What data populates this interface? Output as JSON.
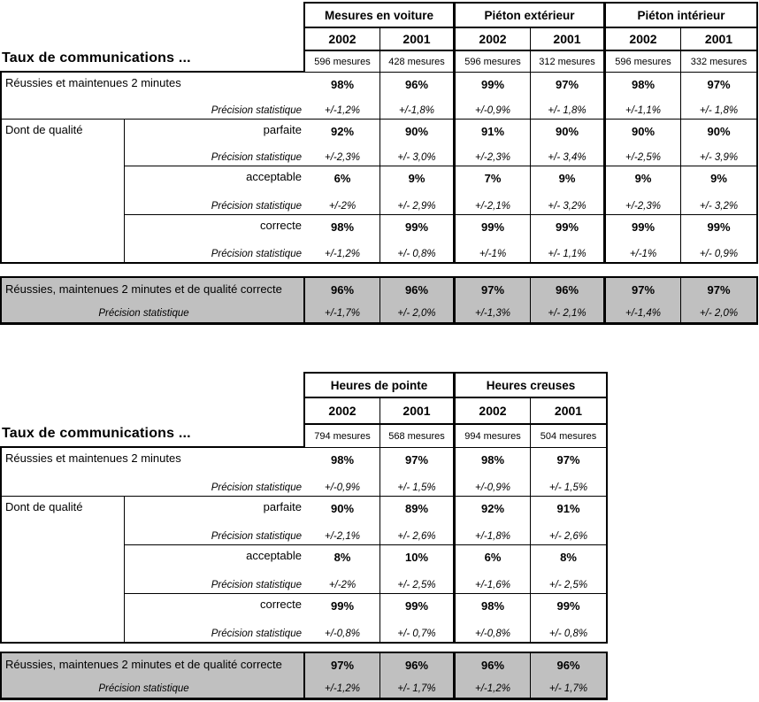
{
  "common": {
    "precision_label": "Précision statistique"
  },
  "colors": {
    "summary_bg": "#c0c0c0",
    "border": "#000000",
    "text": "#000000",
    "page_bg": "#ffffff"
  },
  "table1": {
    "title": "Taux de communications ...",
    "quality_label": "Dont de qualité",
    "groups": [
      {
        "label": "Mesures en voiture",
        "years": [
          "2002",
          "2001"
        ],
        "mesures": [
          "596 mesures",
          "428 mesures"
        ]
      },
      {
        "label": "Piéton extérieur",
        "years": [
          "2002",
          "2001"
        ],
        "mesures": [
          "596 mesures",
          "312 mesures"
        ]
      },
      {
        "label": "Piéton intérieur",
        "years": [
          "2002",
          "2001"
        ],
        "mesures": [
          "596 mesures",
          "332 mesures"
        ]
      }
    ],
    "rows": [
      {
        "label": "Réussies et maintenues 2 minutes",
        "values": [
          "98%",
          "96%",
          "99%",
          "97%",
          "98%",
          "97%"
        ],
        "precisions": [
          "+/-1,2%",
          "+/-1,8%",
          "+/-0,9%",
          "+/- 1,8%",
          "+/-1,1%",
          "+/- 1,8%"
        ]
      },
      {
        "label": "parfaite",
        "values": [
          "92%",
          "90%",
          "91%",
          "90%",
          "90%",
          "90%"
        ],
        "precisions": [
          "+/-2,3%",
          "+/- 3,0%",
          "+/-2,3%",
          "+/- 3,4%",
          "+/-2,5%",
          "+/- 3,9%"
        ]
      },
      {
        "label": "acceptable",
        "values": [
          "6%",
          "9%",
          "7%",
          "9%",
          "9%",
          "9%"
        ],
        "precisions": [
          "+/-2%",
          "+/- 2,9%",
          "+/-2,1%",
          "+/- 3,2%",
          "+/-2,3%",
          "+/- 3,2%"
        ]
      },
      {
        "label": "correcte",
        "values": [
          "98%",
          "99%",
          "99%",
          "99%",
          "99%",
          "99%"
        ],
        "precisions": [
          "+/-1,2%",
          "+/- 0,8%",
          "+/-1%",
          "+/- 1,1%",
          "+/-1%",
          "+/- 0,9%"
        ]
      }
    ],
    "summary": {
      "label": "Réussies, maintenues 2 minutes et de qualité correcte",
      "values": [
        "96%",
        "96%",
        "97%",
        "96%",
        "97%",
        "97%"
      ],
      "precisions": [
        "+/-1,7%",
        "+/- 2,0%",
        "+/-1,3%",
        "+/- 2,1%",
        "+/-1,4%",
        "+/- 2,0%"
      ]
    }
  },
  "table2": {
    "title": "Taux de communications ...",
    "quality_label": "Dont de qualité",
    "groups": [
      {
        "label": "Heures de pointe",
        "years": [
          "2002",
          "2001"
        ],
        "mesures": [
          "794 mesures",
          "568 mesures"
        ]
      },
      {
        "label": "Heures creuses",
        "years": [
          "2002",
          "2001"
        ],
        "mesures": [
          "994 mesures",
          "504 mesures"
        ]
      }
    ],
    "rows": [
      {
        "label": "Réussies et maintenues 2 minutes",
        "values": [
          "98%",
          "97%",
          "98%",
          "97%"
        ],
        "precisions": [
          "+/-0,9%",
          "+/- 1,5%",
          "+/-0,9%",
          "+/- 1,5%"
        ]
      },
      {
        "label": "parfaite",
        "values": [
          "90%",
          "89%",
          "92%",
          "91%"
        ],
        "precisions": [
          "+/-2,1%",
          "+/- 2,6%",
          "+/-1,8%",
          "+/- 2,6%"
        ]
      },
      {
        "label": "acceptable",
        "values": [
          "8%",
          "10%",
          "6%",
          "8%"
        ],
        "precisions": [
          "+/-2%",
          "+/- 2,5%",
          "+/-1,6%",
          "+/- 2,5%"
        ]
      },
      {
        "label": "correcte",
        "values": [
          "99%",
          "99%",
          "98%",
          "99%"
        ],
        "precisions": [
          "+/-0,8%",
          "+/- 0,7%",
          "+/-0,8%",
          "+/- 0,8%"
        ]
      }
    ],
    "summary": {
      "label": "Réussies, maintenues 2 minutes et de qualité correcte",
      "values": [
        "97%",
        "96%",
        "96%",
        "96%"
      ],
      "precisions": [
        "+/-1,2%",
        "+/- 1,7%",
        "+/-1,2%",
        "+/- 1,7%"
      ]
    }
  }
}
